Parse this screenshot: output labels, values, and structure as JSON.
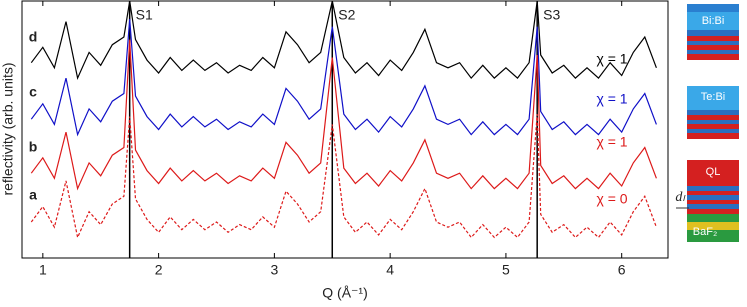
{
  "chart_data": {
    "type": "line",
    "xlabel": "Q (Å⁻¹)",
    "ylabel": "reflectivity (arb. units)",
    "xlim": [
      0.82,
      6.4
    ],
    "xticks": [
      1,
      2,
      3,
      4,
      5,
      6
    ],
    "ylim": [
      0,
      10
    ],
    "x": [
      0.9,
      1.0,
      1.1,
      1.2,
      1.3,
      1.4,
      1.5,
      1.6,
      1.7,
      1.75,
      1.8,
      1.9,
      2.0,
      2.1,
      2.2,
      2.3,
      2.4,
      2.5,
      2.6,
      2.7,
      2.8,
      2.9,
      3.0,
      3.1,
      3.2,
      3.3,
      3.4,
      3.5,
      3.6,
      3.7,
      3.8,
      3.9,
      4.0,
      4.1,
      4.2,
      4.3,
      4.4,
      4.5,
      4.6,
      4.7,
      4.8,
      4.9,
      5.0,
      5.1,
      5.2,
      5.27,
      5.3,
      5.4,
      5.5,
      5.6,
      5.7,
      5.8,
      5.9,
      6.0,
      6.1,
      6.2,
      6.3
    ],
    "series": [
      {
        "name": "d",
        "label": "χ = 1",
        "color": "#000000",
        "dashed": false,
        "values": [
          7.6,
          8.2,
          7.4,
          9.2,
          7.0,
          8.0,
          7.5,
          8.3,
          8.6,
          10,
          8.5,
          7.7,
          7.2,
          7.8,
          7.3,
          7.7,
          7.3,
          7.6,
          7.2,
          7.5,
          7.3,
          7.8,
          7.4,
          8.8,
          8.3,
          7.6,
          8.0,
          10,
          7.8,
          7.2,
          7.6,
          7.1,
          7.7,
          7.3,
          8.0,
          8.9,
          7.6,
          7.4,
          7.6,
          7.0,
          7.5,
          7.0,
          7.4,
          7.0,
          7.6,
          10,
          7.9,
          7.2,
          7.5,
          7.0,
          7.4,
          7.0,
          7.6,
          7.1,
          8.0,
          8.6,
          7.4
        ]
      },
      {
        "name": "c",
        "label": "χ = 1",
        "color": "#1010c8",
        "dashed": false,
        "values": [
          5.4,
          6.0,
          5.2,
          7.0,
          4.8,
          5.8,
          5.3,
          6.1,
          6.4,
          9.3,
          6.3,
          5.5,
          5.0,
          5.6,
          5.1,
          5.5,
          5.1,
          5.4,
          5.0,
          5.3,
          5.1,
          5.6,
          5.2,
          6.6,
          6.1,
          5.4,
          5.8,
          9.0,
          5.6,
          5.0,
          5.4,
          4.9,
          5.5,
          5.1,
          5.8,
          6.7,
          5.4,
          5.2,
          5.4,
          4.8,
          5.3,
          4.8,
          5.2,
          4.8,
          5.4,
          9.0,
          5.7,
          5.0,
          5.3,
          4.8,
          5.2,
          4.8,
          5.4,
          4.9,
          5.8,
          6.4,
          5.2
        ]
      },
      {
        "name": "b",
        "label": "χ = 1",
        "color": "#dd1a1a",
        "dashed": false,
        "values": [
          3.3,
          3.9,
          3.1,
          4.9,
          2.7,
          3.7,
          3.2,
          4.0,
          4.3,
          8.5,
          4.2,
          3.4,
          2.9,
          3.5,
          3.0,
          3.4,
          3.0,
          3.3,
          2.9,
          3.2,
          3.0,
          3.5,
          3.1,
          4.5,
          4.0,
          3.3,
          3.7,
          7.8,
          3.5,
          2.9,
          3.3,
          2.8,
          3.4,
          3.0,
          3.7,
          4.6,
          3.3,
          3.1,
          3.3,
          2.7,
          3.2,
          2.7,
          3.1,
          2.7,
          3.3,
          7.9,
          3.6,
          2.9,
          3.2,
          2.7,
          3.1,
          2.7,
          3.3,
          2.8,
          3.7,
          4.3,
          3.1
        ]
      },
      {
        "name": "a",
        "label": "χ = 0",
        "color": "#dd1a1a",
        "dashed": true,
        "values": [
          1.4,
          2.0,
          1.2,
          3.0,
          0.8,
          1.8,
          1.3,
          2.1,
          2.4,
          5.5,
          2.3,
          1.5,
          1.0,
          1.6,
          1.1,
          1.5,
          1.1,
          1.4,
          1.0,
          1.3,
          1.1,
          1.6,
          1.2,
          2.6,
          2.1,
          1.4,
          1.8,
          5.2,
          1.6,
          1.0,
          1.4,
          0.9,
          1.5,
          1.1,
          1.8,
          2.7,
          1.4,
          1.2,
          1.4,
          0.8,
          1.3,
          0.8,
          1.2,
          0.8,
          1.4,
          5.6,
          1.7,
          1.0,
          1.3,
          0.8,
          1.2,
          0.8,
          1.4,
          0.9,
          1.8,
          2.4,
          1.2
        ]
      }
    ],
    "reference_lines": [
      {
        "x": 1.75,
        "label": "S1"
      },
      {
        "x": 3.5,
        "label": "S2"
      },
      {
        "x": 5.27,
        "label": "S3"
      }
    ],
    "sketches": [
      "Bi:Bi",
      "Te:Bi",
      "QL"
    ],
    "sketch_annotations": [
      "dₗ",
      "BaF₂"
    ]
  }
}
